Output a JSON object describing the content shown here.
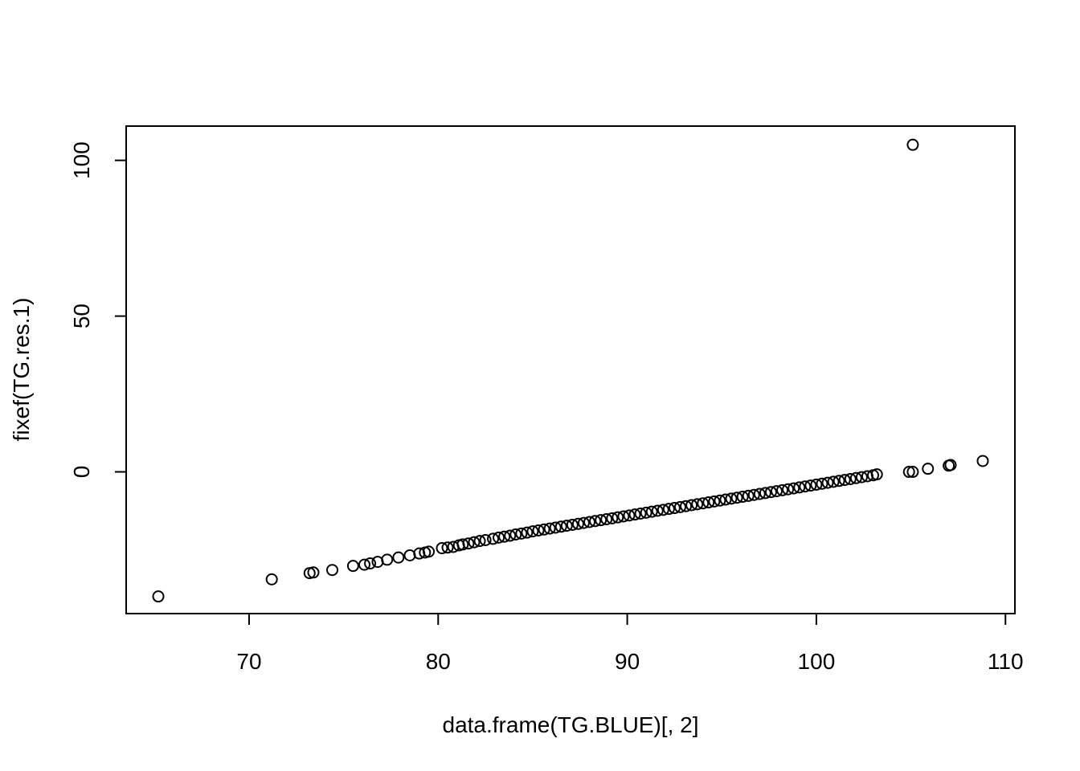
{
  "chart_data": {
    "type": "scatter",
    "title": "",
    "xlabel": "data.frame(TG.BLUE)[, 2]",
    "ylabel": "fixef(TG.res.1)",
    "xlim": [
      63.5,
      110.5
    ],
    "ylim": [
      -45.5,
      111
    ],
    "xticks": [
      70,
      80,
      90,
      100,
      110
    ],
    "yticks": [
      0,
      50,
      100
    ],
    "grid": false,
    "legend": "none",
    "series": [
      {
        "marker": "open-circle",
        "color": "#000000",
        "points": [
          [
            65.2,
            -40.0
          ],
          [
            71.2,
            -34.5
          ],
          [
            73.2,
            -32.5
          ],
          [
            73.4,
            -32.3
          ],
          [
            74.4,
            -31.5
          ],
          [
            75.5,
            -30.2
          ],
          [
            76.1,
            -29.8
          ],
          [
            76.4,
            -29.4
          ],
          [
            76.8,
            -28.9
          ],
          [
            77.3,
            -28.2
          ],
          [
            77.9,
            -27.5
          ],
          [
            78.5,
            -26.8
          ],
          [
            79.0,
            -26.2
          ],
          [
            79.3,
            -25.9
          ],
          [
            79.5,
            -25.6
          ],
          [
            80.2,
            -24.5
          ],
          [
            80.5,
            -24.3
          ],
          [
            80.8,
            -24.1
          ],
          [
            81.1,
            -23.6
          ],
          [
            81.3,
            -23.3
          ],
          [
            81.6,
            -23.0
          ],
          [
            81.9,
            -22.6
          ],
          [
            82.2,
            -22.2
          ],
          [
            82.5,
            -21.9
          ],
          [
            82.9,
            -21.5
          ],
          [
            83.2,
            -21.1
          ],
          [
            83.5,
            -20.8
          ],
          [
            83.8,
            -20.5
          ],
          [
            84.1,
            -20.1
          ],
          [
            84.4,
            -19.8
          ],
          [
            84.7,
            -19.5
          ],
          [
            85.0,
            -19.1
          ],
          [
            85.3,
            -18.8
          ],
          [
            85.6,
            -18.5
          ],
          [
            85.9,
            -18.2
          ],
          [
            86.2,
            -17.9
          ],
          [
            86.5,
            -17.6
          ],
          [
            86.8,
            -17.3
          ],
          [
            87.1,
            -17.0
          ],
          [
            87.4,
            -16.7
          ],
          [
            87.7,
            -16.4
          ],
          [
            88.0,
            -16.1
          ],
          [
            88.3,
            -15.8
          ],
          [
            88.6,
            -15.5
          ],
          [
            88.9,
            -15.2
          ],
          [
            89.2,
            -14.9
          ],
          [
            89.5,
            -14.6
          ],
          [
            89.8,
            -14.3
          ],
          [
            90.1,
            -14.0
          ],
          [
            90.4,
            -13.7
          ],
          [
            90.7,
            -13.4
          ],
          [
            91.0,
            -13.1
          ],
          [
            91.3,
            -12.8
          ],
          [
            91.6,
            -12.5
          ],
          [
            91.9,
            -12.2
          ],
          [
            92.2,
            -11.9
          ],
          [
            92.5,
            -11.6
          ],
          [
            92.8,
            -11.3
          ],
          [
            93.1,
            -11.0
          ],
          [
            93.4,
            -10.7
          ],
          [
            93.7,
            -10.4
          ],
          [
            94.0,
            -10.1
          ],
          [
            94.3,
            -9.8
          ],
          [
            94.6,
            -9.5
          ],
          [
            94.9,
            -9.2
          ],
          [
            95.2,
            -8.9
          ],
          [
            95.5,
            -8.6
          ],
          [
            95.8,
            -8.3
          ],
          [
            96.1,
            -8.0
          ],
          [
            96.4,
            -7.7
          ],
          [
            96.7,
            -7.4
          ],
          [
            97.0,
            -7.1
          ],
          [
            97.3,
            -6.8
          ],
          [
            97.6,
            -6.5
          ],
          [
            97.9,
            -6.2
          ],
          [
            98.2,
            -5.9
          ],
          [
            98.5,
            -5.6
          ],
          [
            98.8,
            -5.3
          ],
          [
            99.1,
            -5.0
          ],
          [
            99.4,
            -4.7
          ],
          [
            99.7,
            -4.4
          ],
          [
            100.0,
            -4.1
          ],
          [
            100.3,
            -3.8
          ],
          [
            100.6,
            -3.5
          ],
          [
            100.9,
            -3.2
          ],
          [
            101.2,
            -2.9
          ],
          [
            101.5,
            -2.6
          ],
          [
            101.8,
            -2.3
          ],
          [
            102.1,
            -2.0
          ],
          [
            102.4,
            -1.7
          ],
          [
            102.7,
            -1.4
          ],
          [
            103.0,
            -1.1
          ],
          [
            103.2,
            -0.8
          ],
          [
            104.9,
            0.0
          ],
          [
            105.1,
            0.0
          ],
          [
            105.9,
            1.0
          ],
          [
            107.0,
            2.0
          ],
          [
            107.1,
            2.2
          ],
          [
            108.8,
            3.5
          ],
          [
            105.1,
            105.0
          ]
        ]
      }
    ]
  }
}
